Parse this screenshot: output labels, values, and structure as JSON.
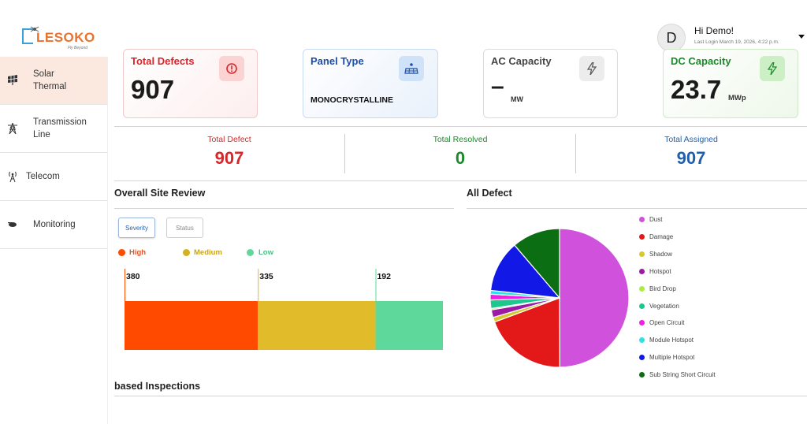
{
  "header": {
    "logo_text": "LESOKO",
    "logo_tagline": "Fly Beyond",
    "avatar_letter": "D",
    "greeting": "Hi Demo!",
    "last_login": "Last Login March 19, 2026, 4:22 p.m."
  },
  "sidebar": {
    "items": [
      {
        "label": "Solar\nThermal",
        "icon": "solar-panel-icon"
      },
      {
        "label": "Transmission\nLine",
        "icon": "transmission-tower-icon"
      },
      {
        "label": "Telecom",
        "icon": "antenna-icon"
      },
      {
        "label": "Monitoring",
        "icon": "drone-icon"
      }
    ]
  },
  "cards": {
    "total_defects": {
      "title": "Total Defects",
      "value": "907",
      "color": "#d9262a",
      "icon": "alert-icon"
    },
    "panel_type": {
      "title": "Panel Type",
      "value": "MONOCRYSTALLINE",
      "color": "#1f4fa6",
      "icon": "solar-panel-icon"
    },
    "ac_capacity": {
      "title": "AC Capacity",
      "value": "–",
      "unit": "MW",
      "icon": "bolt-icon"
    },
    "dc_capacity": {
      "title": "DC Capacity",
      "value": "23.7",
      "unit": "MWp",
      "color": "#1d8a2a",
      "icon": "bolt-icon"
    }
  },
  "stats": {
    "total_defect": {
      "label": "Total Defect",
      "value": "907",
      "color": "#d9262a"
    },
    "total_resolved": {
      "label": "Total Resolved",
      "value": "0",
      "color": "#1d8a2a"
    },
    "total_assigned": {
      "label": "Total Assigned",
      "value": "907",
      "color": "#1f5fb0"
    }
  },
  "site_review": {
    "title": "Overall Site Review",
    "tabs": [
      "Severity",
      "Status"
    ],
    "active_tab": "Severity"
  },
  "all_defect": {
    "title": "All Defect"
  },
  "bottom": {
    "title": "based Inspections"
  },
  "chart_data": [
    {
      "type": "bar",
      "orientation": "horizontal-stacked",
      "categories": [
        "High",
        "Medium",
        "Low"
      ],
      "values": [
        380,
        335,
        192
      ],
      "colors": [
        "#ff4a00",
        "#e2bb2a",
        "#5fd99b"
      ],
      "legend_colors": [
        "#ff4a00",
        "#d4b21f",
        "#5fd99b"
      ],
      "legend_label_colors": [
        "#e2542a",
        "#c9a51c",
        "#4fbf88"
      ]
    },
    {
      "type": "pie",
      "categories": [
        "Dust",
        "Damage",
        "Shadow",
        "Hotspot",
        "Bird Drop",
        "Vegetation",
        "Open Circuit",
        "Module Hotspot",
        "Multiple Hotspot",
        "Sub String Short Circuit"
      ],
      "values": [
        453,
        176,
        10,
        16,
        3,
        18,
        12,
        8,
        109,
        102
      ],
      "colors": [
        "#d052dc",
        "#e31919",
        "#d7c82b",
        "#9c1aa6",
        "#a8f03c",
        "#1ec78e",
        "#ef1fe3",
        "#27e5e5",
        "#1218e5",
        "#0c6e12"
      ]
    }
  ]
}
